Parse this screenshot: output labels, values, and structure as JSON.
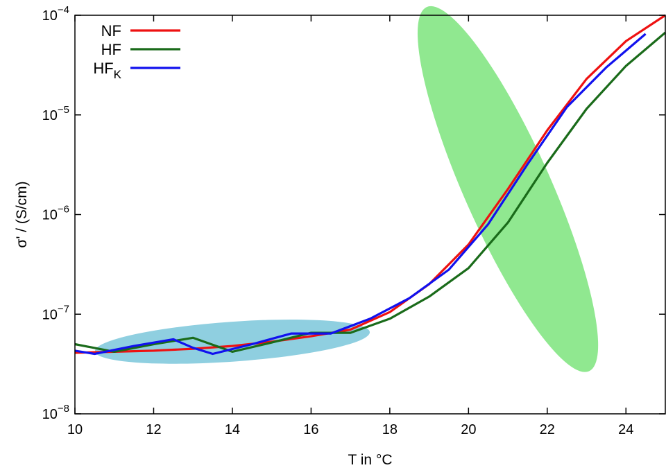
{
  "chart_data": {
    "type": "line",
    "title": "",
    "xlabel": "T in °C",
    "ylabel": "σ' / (S/cm)",
    "xlim": [
      10,
      25
    ],
    "ylim": [
      1e-08,
      0.0001
    ],
    "yscale": "log",
    "grid": false,
    "legend_position": "top-left",
    "x_ticks": [
      10,
      12,
      14,
      16,
      18,
      20,
      22,
      24
    ],
    "y_ticks": [
      {
        "mantissa": "10",
        "exponent": "−8",
        "value": 1e-08
      },
      {
        "mantissa": "10",
        "exponent": "−7",
        "value": 1e-07
      },
      {
        "mantissa": "10",
        "exponent": "−6",
        "value": 1e-06
      },
      {
        "mantissa": "10",
        "exponent": "−5",
        "value": 1e-05
      },
      {
        "mantissa": "10",
        "exponent": "−4",
        "value": 0.0001
      }
    ],
    "series": [
      {
        "name": "NF",
        "legend_base": "NF",
        "legend_sub": "",
        "color": "#ee1111",
        "x": [
          10,
          11,
          12,
          13,
          14,
          15,
          16,
          17,
          18,
          19,
          20,
          21,
          22,
          23,
          24,
          25
        ],
        "y": [
          4.1e-08,
          4.2e-08,
          4.3e-08,
          4.5e-08,
          4.8e-08,
          5.3e-08,
          6e-08,
          7e-08,
          1.05e-07,
          2e-07,
          5e-07,
          1.8e-06,
          7e-06,
          2.3e-05,
          5.5e-05,
          0.0001
        ]
      },
      {
        "name": "HF",
        "legend_base": "HF",
        "legend_sub": "",
        "color": "#1a6b1a",
        "x": [
          10,
          11,
          12,
          13,
          14,
          15,
          16,
          17,
          18,
          19,
          20,
          21,
          22,
          23,
          24,
          25
        ],
        "y": [
          5e-08,
          4.2e-08,
          5e-08,
          5.8e-08,
          4.2e-08,
          5.2e-08,
          6.5e-08,
          6.5e-08,
          9e-08,
          1.5e-07,
          2.9e-07,
          8.3e-07,
          3.3e-06,
          1.15e-05,
          3.1e-05,
          6.7e-05
        ]
      },
      {
        "name": "HFK",
        "legend_base": "HF",
        "legend_sub": "K",
        "color": "#1111ee",
        "x": [
          10,
          10.5,
          11.5,
          12.5,
          13,
          13.5,
          14.5,
          15.5,
          16.5,
          17.5,
          18.5,
          19.5,
          20.5,
          21.5,
          22.5,
          23.5,
          24.5
        ],
        "y": [
          4.3e-08,
          4e-08,
          4.8e-08,
          5.6e-08,
          4.6e-08,
          4e-08,
          5e-08,
          6.4e-08,
          6.4e-08,
          9e-08,
          1.45e-07,
          2.8e-07,
          8e-07,
          3.2e-06,
          1.2e-05,
          3e-05,
          6.5e-05
        ]
      }
    ],
    "highlights": [
      {
        "name": "low-temperature-region",
        "color": "#8fcfe0",
        "center": [
          14,
          5.3e-08
        ],
        "semi_x": 3.5,
        "semi_y_decades": 0.2,
        "rotation_deg": -4
      },
      {
        "name": "transition-region",
        "color": "#90e890",
        "center": [
          21,
          1.8e-06
        ],
        "semi_x": 1.1,
        "semi_y_decades": 2.0,
        "rotation_deg": -24
      }
    ]
  }
}
